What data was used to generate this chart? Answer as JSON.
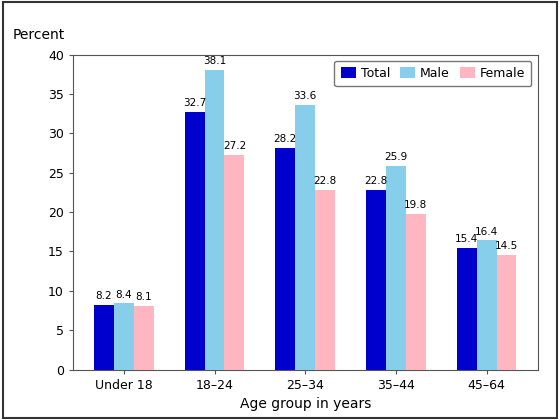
{
  "ylabel": "Percent",
  "xlabel": "Age group in years",
  "categories": [
    "Under 18",
    "18–24",
    "25–34",
    "35–44",
    "45–64"
  ],
  "series": {
    "Total": [
      8.2,
      32.7,
      28.2,
      22.8,
      15.4
    ],
    "Male": [
      8.4,
      38.1,
      33.6,
      25.9,
      16.4
    ],
    "Female": [
      8.1,
      27.2,
      22.8,
      19.8,
      14.5
    ]
  },
  "colors": {
    "Total": "#0000CD",
    "Male": "#87CEEB",
    "Female": "#FFB6C1"
  },
  "ylim": [
    0,
    40
  ],
  "yticks": [
    0,
    5,
    10,
    15,
    20,
    25,
    30,
    35,
    40
  ],
  "bar_width": 0.22,
  "legend_labels": [
    "Total",
    "Male",
    "Female"
  ],
  "label_fontsize": 7.5,
  "axis_fontsize": 9,
  "background_color": "#ffffff",
  "border_color": "#555555"
}
